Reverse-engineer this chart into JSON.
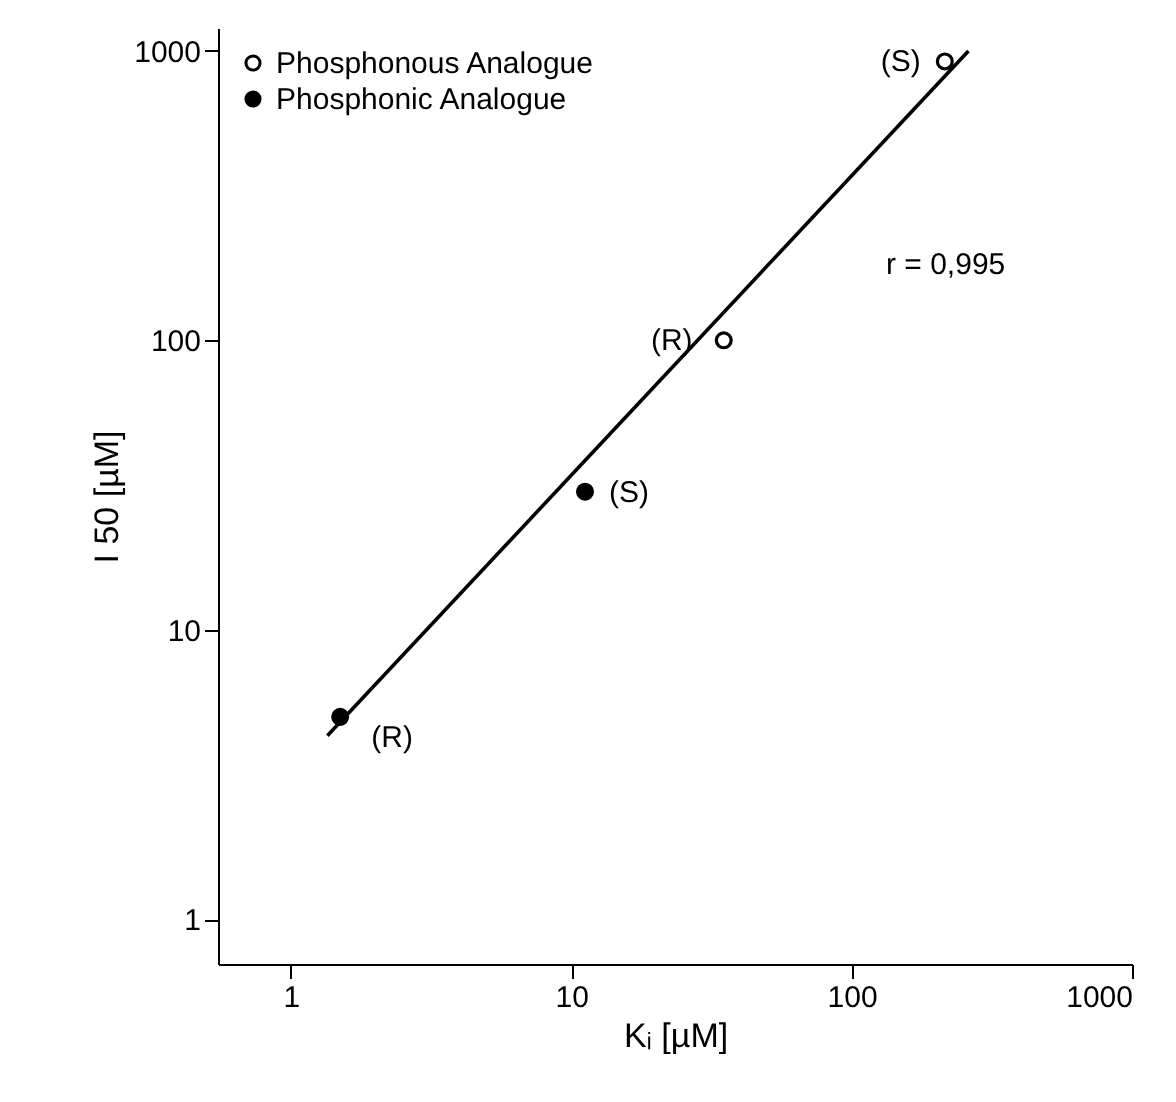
{
  "chart_data": {
    "type": "scatter",
    "xlabel": "Kᵢ [µM]",
    "ylabel": "I 50 [µM]",
    "log": "xy",
    "xlim": [
      0.55,
      1000
    ],
    "ylim": [
      0.7,
      1200
    ],
    "xticks": [
      1,
      10,
      100,
      1000
    ],
    "yticks": [
      1,
      10,
      100,
      1000
    ],
    "grid": false,
    "legend": "top left",
    "marker": "circle",
    "series": [
      {
        "name": "Phosphonous Analogue",
        "color": "#000000",
        "x": [
          215,
          35
        ],
        "values": [
          920,
          100
        ]
      },
      {
        "name": "Phosphonic Analogue",
        "color": "#000000",
        "x": [
          11.2,
          1.5
        ],
        "values": [
          30,
          5
        ]
      },
      {
        "type": "line",
        "color": "#000000",
        "x": [
          1.35,
          261
        ],
        "values": [
          4.3,
          1000
        ],
        "line_style": "solid",
        "marker": "none"
      }
    ],
    "annotations": [
      {
        "text": "(S)",
        "x": 215,
        "y": 920
      },
      {
        "text": "(R)",
        "x": 35,
        "y": 100
      },
      {
        "text": "(S)",
        "x": 11.2,
        "y": 30
      },
      {
        "text": "(R)",
        "x": 1.5,
        "y": 5
      },
      "r = 0,995"
    ]
  }
}
